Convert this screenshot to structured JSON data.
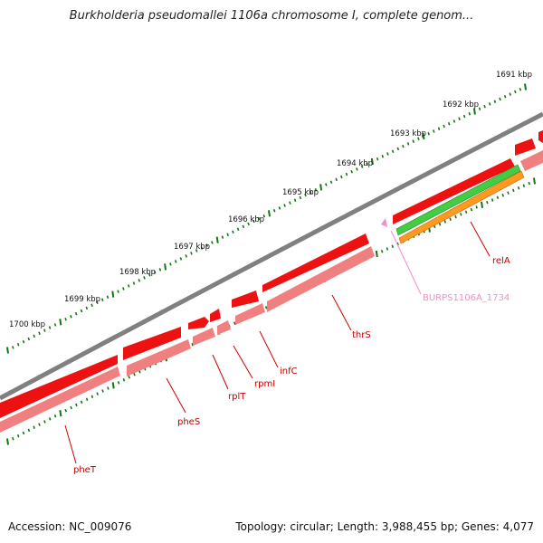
{
  "title": "Burkholderia pseudomallei 1106a chromosome I, complete genom...",
  "ruler": [
    {
      "label": "1691 kbp"
    },
    {
      "label": "1692 kbp"
    },
    {
      "label": "1693 kbp"
    },
    {
      "label": "1694 kbp"
    },
    {
      "label": "1695 kbp"
    },
    {
      "label": "1696 kbp"
    },
    {
      "label": "1697 kbp"
    },
    {
      "label": "1698 kbp"
    },
    {
      "label": "1699 kbp"
    },
    {
      "label": "1700 kbp"
    }
  ],
  "genes": [
    {
      "label": "relA"
    },
    {
      "label": "BURPS1106A_1734"
    },
    {
      "label": "thrS"
    },
    {
      "label": "infC"
    },
    {
      "label": "rpmI"
    },
    {
      "label": "rplT"
    },
    {
      "label": "pheS"
    },
    {
      "label": "pheT"
    }
  ],
  "colors": {
    "backbone": "#808080",
    "cds": "#ee1111",
    "gene": "#f08080",
    "rrna": "#44cc44",
    "misc": "#ff9922",
    "label": "#cc0000",
    "pseudo_label": "#f08fc8",
    "tick": "#117711"
  },
  "footer": {
    "accession": "Accession: NC_009076",
    "stats": "Topology: circular; Length: 3,988,455 bp; Genes: 4,077"
  }
}
